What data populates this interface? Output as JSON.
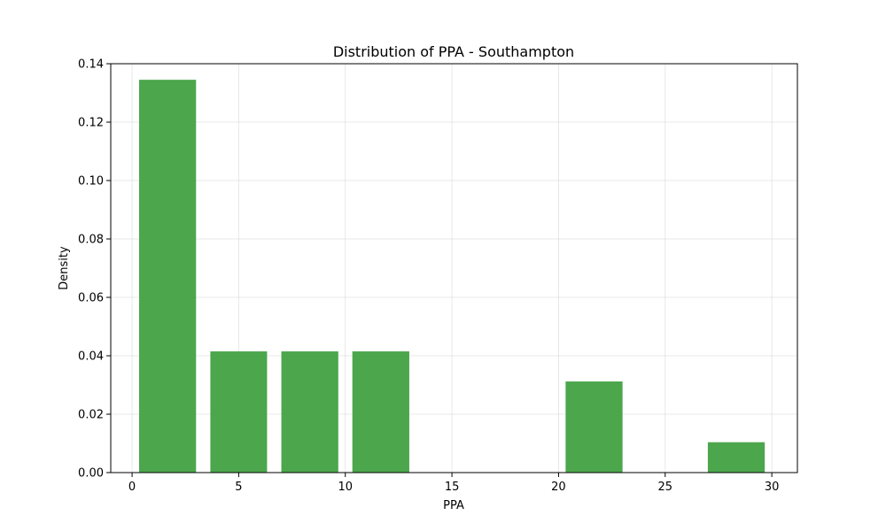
{
  "chart_data": {
    "type": "bar",
    "title": "Distribution of PPA - Southampton",
    "xlabel": "PPA",
    "ylabel": "Density",
    "xlim": [
      -1.0,
      31.2
    ],
    "ylim": [
      0,
      0.14
    ],
    "xticks": [
      0,
      5,
      10,
      15,
      20,
      25,
      30
    ],
    "yticks": [
      0.0,
      0.02,
      0.04,
      0.06,
      0.08,
      0.1,
      0.12,
      0.14
    ],
    "ytick_decimals": 2,
    "grid": true,
    "bar_color": "#4ca64c",
    "bins": [
      {
        "x0": 0.33,
        "x1": 3.0,
        "value": 0.1345
      },
      {
        "x0": 3.67,
        "x1": 6.33,
        "value": 0.0415
      },
      {
        "x0": 7.0,
        "x1": 9.67,
        "value": 0.0415
      },
      {
        "x0": 10.33,
        "x1": 13.0,
        "value": 0.0415
      },
      {
        "x0": 20.33,
        "x1": 23.0,
        "value": 0.0312
      },
      {
        "x0": 27.0,
        "x1": 29.67,
        "value": 0.0104
      }
    ]
  }
}
